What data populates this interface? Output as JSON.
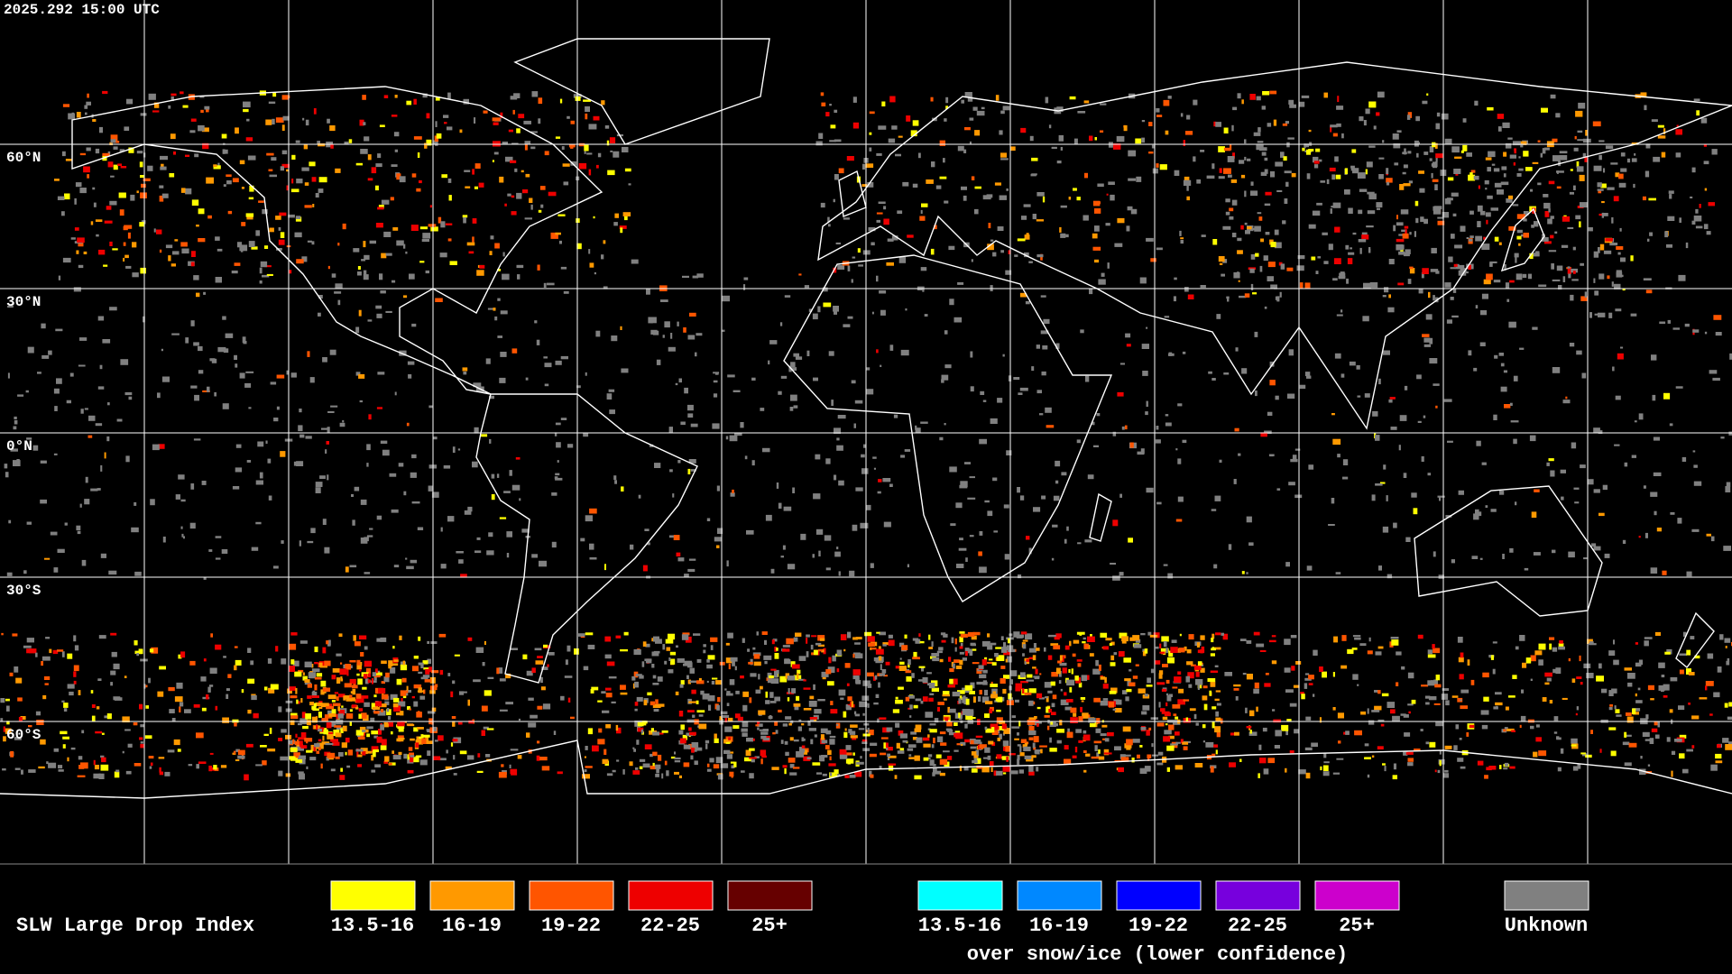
{
  "header": {
    "timestamp": "2025.292 15:00 UTC"
  },
  "map": {
    "lat_labels": [
      "60°N",
      "30°N",
      "0°N",
      "30°S",
      "60°S"
    ]
  },
  "legend": {
    "title": "SLW Large Drop Index",
    "liquid": [
      {
        "label": "13.5-16",
        "color": "#ffff00"
      },
      {
        "label": "16-19",
        "color": "#ff9900"
      },
      {
        "label": "19-22",
        "color": "#ff5500"
      },
      {
        "label": "22-25",
        "color": "#ee0000"
      },
      {
        "label": "25+",
        "color": "#660000"
      }
    ],
    "snow_ice": {
      "items": [
        {
          "label": "13.5-16",
          "color": "#00ffff"
        },
        {
          "label": "16-19",
          "color": "#0088ff"
        },
        {
          "label": "19-22",
          "color": "#0000ff"
        },
        {
          "label": "22-25",
          "color": "#7700dd"
        },
        {
          "label": "25+",
          "color": "#cc00cc"
        }
      ],
      "caption": "over snow/ice (lower confidence)"
    },
    "unknown": {
      "label": "Unknown",
      "color": "#808080"
    }
  }
}
